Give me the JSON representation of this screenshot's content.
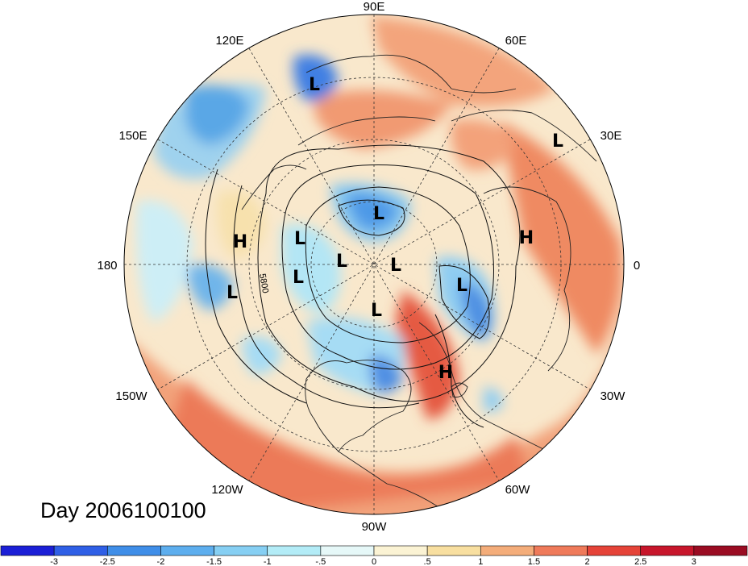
{
  "title": "Day 2006100100",
  "longitude_labels": {
    "lon_90e": "90E",
    "lon_120e": "120E",
    "lon_60e": "60E",
    "lon_150e": "150E",
    "lon_30e": "30E",
    "lon_180": "180",
    "lon_0": "0",
    "lon_150w": "150W",
    "lon_30w": "30W",
    "lon_120w": "120W",
    "lon_60w": "60W",
    "lon_90w": "90W"
  },
  "contour_label": "5800",
  "pressure_centers": [
    {
      "type": "L",
      "name": "low-eastern-siberia"
    },
    {
      "type": "H",
      "name": "high-north-pacific"
    },
    {
      "type": "L",
      "name": "low-bering"
    },
    {
      "type": "L",
      "name": "low-arctic-1"
    },
    {
      "type": "L",
      "name": "low-arctic-2"
    },
    {
      "type": "L",
      "name": "low-arctic-3"
    },
    {
      "type": "L",
      "name": "low-north-pole"
    },
    {
      "type": "L",
      "name": "low-hudson"
    },
    {
      "type": "L",
      "name": "low-central-pacific"
    },
    {
      "type": "L",
      "name": "low-north-atlantic"
    },
    {
      "type": "H",
      "name": "high-europe"
    },
    {
      "type": "L",
      "name": "low-middle-east"
    },
    {
      "type": "H",
      "name": "high-western-atlantic"
    }
  ],
  "colorbar": {
    "ticks": [
      "-3",
      "-2.5",
      "-2",
      "-1.5",
      "-1",
      "-.5",
      "0",
      ".5",
      "1",
      "1.5",
      "2",
      "2.5",
      "3"
    ],
    "colors": [
      "#1b1fd6",
      "#2f5fe6",
      "#3f8ee8",
      "#5daeee",
      "#86cff3",
      "#b3ecf7",
      "#e6f8f8",
      "#fbf3d4",
      "#f8dfa0",
      "#f4ad7a",
      "#ef7a5a",
      "#e54338",
      "#c7162b",
      "#9a0c22"
    ]
  },
  "colors": {
    "ocean_warm": "#f4b48c",
    "land_neutral": "#f9e6c6",
    "cool": "#9fd2ee"
  }
}
